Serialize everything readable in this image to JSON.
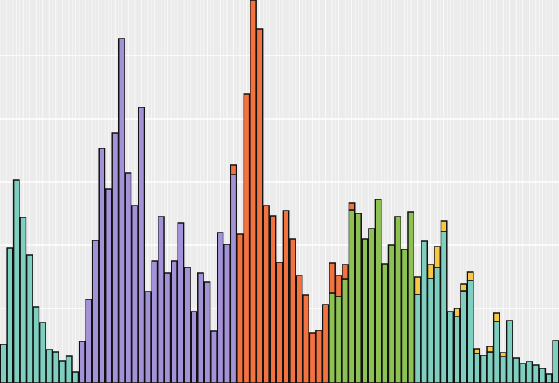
{
  "chart_data": {
    "type": "stacked-bar",
    "categories": [
      null,
      null,
      null,
      null,
      null,
      null,
      null,
      null,
      null,
      null,
      null,
      null,
      null,
      null,
      null,
      null,
      null,
      null,
      null,
      null,
      null,
      null,
      null,
      null,
      null,
      null,
      null,
      null,
      null,
      null,
      null,
      null,
      null,
      null,
      null,
      null,
      null,
      null,
      null,
      null,
      null,
      null,
      null,
      null,
      null,
      null,
      null,
      null,
      null,
      null,
      null,
      null,
      null,
      null,
      null,
      null,
      null,
      null,
      null,
      null,
      null,
      null,
      null,
      null,
      null,
      null,
      null,
      null,
      null,
      null,
      null,
      null,
      null,
      null,
      null,
      null,
      null,
      null,
      null,
      null,
      null,
      null,
      null,
      null,
      null
    ],
    "series": [
      {
        "color": "#7fcfc0",
        "values": [
          56,
          195,
          293,
          239,
          185,
          110,
          87,
          48,
          45,
          32,
          39,
          16,
          0,
          0,
          0,
          0,
          0,
          0,
          0,
          0,
          0,
          0,
          0,
          0,
          0,
          0,
          0,
          0,
          0,
          0,
          0,
          0,
          0,
          0,
          0,
          0,
          0,
          0,
          0,
          0,
          0,
          0,
          0,
          0,
          0,
          0,
          0,
          0,
          0,
          0,
          0,
          0,
          0,
          0,
          0,
          0,
          0,
          0,
          0,
          0,
          0,
          0,
          0,
          128,
          205,
          151,
          167,
          219,
          103,
          96,
          133,
          148,
          43,
          40,
          45,
          89,
          38,
          90,
          36,
          28,
          31,
          26,
          21,
          13,
          61
        ]
      },
      {
        "color": "#a492d8",
        "values": [
          0,
          0,
          0,
          0,
          0,
          0,
          0,
          0,
          0,
          0,
          0,
          0,
          60,
          121,
          206,
          339,
          280,
          361,
          497,
          303,
          256,
          398,
          132,
          176,
          240,
          159,
          176,
          231,
          167,
          103,
          159,
          146,
          75,
          217,
          200,
          301,
          0,
          0,
          0,
          0,
          0,
          0,
          0,
          0,
          0,
          0,
          0,
          0,
          0,
          0,
          0,
          0,
          0,
          0,
          0,
          0,
          0,
          0,
          0,
          0,
          0,
          0,
          0,
          0,
          0,
          0,
          0,
          0,
          0,
          0,
          0,
          0,
          0,
          0,
          0,
          0,
          0,
          0,
          0,
          0,
          0,
          0,
          0,
          0,
          0
        ]
      },
      {
        "color": "#8dc152",
        "values": [
          0,
          0,
          0,
          0,
          0,
          0,
          0,
          0,
          0,
          0,
          0,
          0,
          0,
          0,
          0,
          0,
          0,
          0,
          0,
          0,
          0,
          0,
          0,
          0,
          0,
          0,
          0,
          0,
          0,
          0,
          0,
          0,
          0,
          0,
          0,
          0,
          0,
          0,
          0,
          0,
          0,
          0,
          0,
          0,
          0,
          0,
          0,
          0,
          0,
          0,
          130,
          125,
          150,
          250,
          245,
          208,
          223,
          265,
          172,
          199,
          240,
          193,
          247,
          0,
          0,
          0,
          0,
          0,
          0,
          0,
          0,
          0,
          0,
          0,
          0,
          0,
          0,
          0,
          0,
          0,
          0,
          0,
          0,
          0,
          0
        ]
      },
      {
        "color": "#f2733f",
        "values": [
          0,
          0,
          0,
          0,
          0,
          0,
          0,
          0,
          0,
          0,
          0,
          0,
          0,
          0,
          0,
          0,
          0,
          0,
          0,
          0,
          0,
          0,
          0,
          0,
          0,
          0,
          0,
          0,
          0,
          0,
          0,
          0,
          0,
          0,
          0,
          14,
          215,
          417,
          553,
          511,
          256,
          241,
          174,
          249,
          208,
          155,
          127,
          72,
          76,
          113,
          43,
          30,
          21,
          10,
          0,
          0,
          0,
          0,
          0,
          0,
          0,
          0,
          0,
          0,
          0,
          0,
          0,
          0,
          0,
          0,
          0,
          0,
          0,
          0,
          0,
          0,
          0,
          0,
          0,
          0,
          0,
          0,
          0,
          0,
          0
        ]
      },
      {
        "color": "#f8c745",
        "values": [
          0,
          0,
          0,
          0,
          0,
          0,
          0,
          0,
          0,
          0,
          0,
          0,
          0,
          0,
          0,
          0,
          0,
          0,
          0,
          0,
          0,
          0,
          0,
          0,
          0,
          0,
          0,
          0,
          0,
          0,
          0,
          0,
          0,
          0,
          0,
          0,
          0,
          0,
          0,
          0,
          0,
          0,
          0,
          0,
          0,
          0,
          0,
          0,
          0,
          0,
          0,
          0,
          0,
          0,
          0,
          0,
          0,
          0,
          0,
          0,
          0,
          0,
          0,
          25,
          0,
          20,
          30,
          15,
          0,
          12,
          10,
          12,
          6,
          0,
          8,
          12,
          6,
          0,
          0,
          0,
          0,
          0,
          0,
          0,
          0
        ]
      }
    ],
    "ylim": [
      0,
      553
    ],
    "yticks": [
      108,
      199,
      290,
      381,
      473
    ],
    "grid": true
  }
}
